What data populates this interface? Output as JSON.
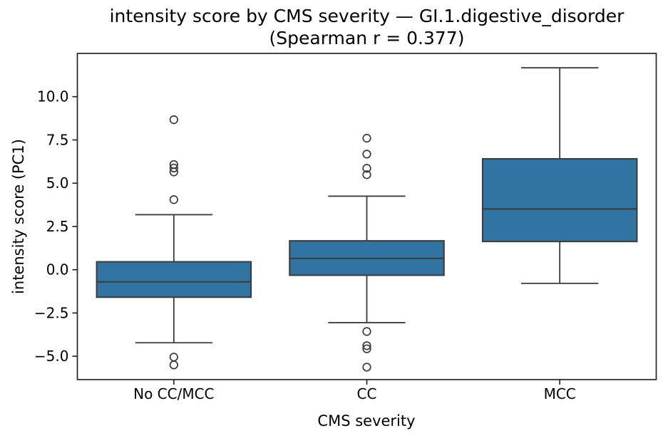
{
  "chart_data": {
    "type": "box",
    "title": "intensity score by CMS severity — GI.1.digestive_disorder",
    "subtitle": "(Spearman r = 0.377)",
    "xlabel": "CMS severity",
    "ylabel": "intensity score (PC1)",
    "spearman_r": 0.377,
    "categories": [
      "No CC/MCC",
      "CC",
      "MCC"
    ],
    "ylim": [
      -6.35,
      12.5
    ],
    "yticks": [
      10.0,
      7.5,
      5.0,
      2.5,
      0.0,
      -2.5,
      -5.0
    ],
    "ytick_labels": [
      "10.0",
      "7.5",
      "5.0",
      "2.5",
      "0.0",
      "−2.5",
      "−5.0"
    ],
    "grid": false,
    "legend": null,
    "series": [
      {
        "category": "No CC/MCC",
        "whisker_low": -4.22,
        "q1": -1.59,
        "median": -0.7,
        "q3": 0.46,
        "whisker_high": 3.18,
        "outliers": [
          8.67,
          6.08,
          5.88,
          5.65,
          4.05,
          -5.05,
          -5.5
        ]
      },
      {
        "category": "CC",
        "whisker_low": -3.06,
        "q1": -0.32,
        "median": 0.65,
        "q3": 1.67,
        "whisker_high": 4.25,
        "outliers": [
          7.6,
          6.68,
          5.86,
          5.49,
          -3.57,
          -4.39,
          -4.57,
          -5.63
        ]
      },
      {
        "category": "MCC",
        "whisker_low": -0.79,
        "q1": 1.63,
        "median": 3.51,
        "q3": 6.41,
        "whisker_high": 11.67,
        "outliers": []
      }
    ],
    "colors": {
      "box_fill": "#3274a1",
      "box_line": "#3b3b3b",
      "spine": "#262626",
      "text": "#000000"
    }
  }
}
